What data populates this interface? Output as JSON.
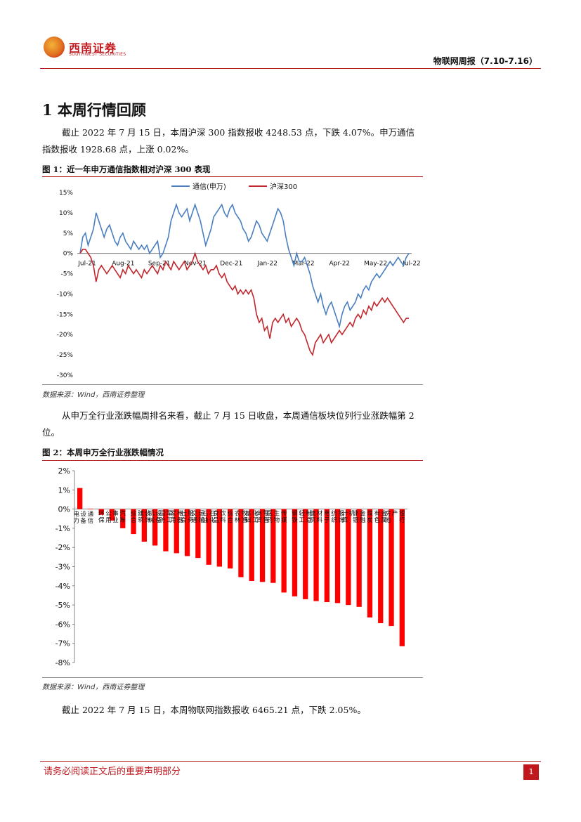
{
  "header": {
    "brand_cn": "西南证券",
    "brand_en": "SOUTHWEST SECURITIES",
    "report_title": "物联网周报（7.10-7.16）"
  },
  "section": {
    "title": "1 本周行情回顾"
  },
  "paragraphs": {
    "p1": "截止 2022 年 7 月 15 日，本周沪深 300 指数报收 4248.53 点，下跌 4.07%。申万通信指数报收 1928.68 点，上涨 0.02%。",
    "p2": "从申万全行业涨跌幅周排名来看，截止 7 月 15 日收盘，本周通信板块位列行业涨跌幅第 2 位。",
    "p3": "截止 2022 年 7 月 15 日，本周物联网指数报收 6465.21 点，下跌 2.05%。"
  },
  "figures": {
    "fig1_label": "图 1：近一年申万通信指数相对沪深 300 表现",
    "fig1_source": "数据来源：Wind，西南证券整理",
    "fig2_label": "图 2：本周申万全行业涨跌幅情况",
    "fig2_source": "数据来源：Wind，西南证券整理"
  },
  "colors": {
    "telecom": "#4a7fbf",
    "hs300": "#c0272d",
    "bar": "#ff0000",
    "accent": "#c0181d"
  },
  "chart_data": [
    {
      "type": "line",
      "title": "近一年申万通信指数相对沪深 300 表现",
      "x_labels": [
        "Jul-21",
        "Aug-21",
        "Sep-21",
        "Nov-21",
        "Dec-21",
        "Jan-22",
        "Mar-22",
        "Apr-22",
        "May-22",
        "Jul-22"
      ],
      "y_ticks": [
        "15%",
        "10%",
        "5%",
        "0%",
        "-5%",
        "-10%",
        "-15%",
        "-20%",
        "-25%",
        "-30%"
      ],
      "ylim": [
        -30,
        15
      ],
      "series": [
        {
          "name": "通信(申万)",
          "values": [
            0,
            4,
            5,
            2,
            4,
            6,
            10,
            8,
            6,
            4,
            6,
            7,
            5,
            3,
            2,
            4,
            5,
            3,
            2,
            1,
            3,
            2,
            1,
            2,
            1,
            2,
            0,
            1,
            2,
            3,
            -1,
            0,
            2,
            4,
            8,
            10,
            12,
            10,
            9,
            10,
            11,
            8,
            10,
            12,
            10,
            8,
            5,
            2,
            4,
            6,
            9,
            10,
            11,
            12,
            10,
            9,
            11,
            12,
            10,
            9,
            8,
            6,
            5,
            3,
            4,
            6,
            8,
            7,
            5,
            4,
            3,
            5,
            7,
            9,
            11,
            10,
            8,
            4,
            1,
            -1,
            -3,
            0,
            -2,
            -2,
            -1,
            -3,
            -5,
            -8,
            -10,
            -12,
            -10,
            -13,
            -15,
            -13,
            -12,
            -14,
            -16,
            -18,
            -15,
            -13,
            -12,
            -14,
            -13,
            -12,
            -10,
            -11,
            -9,
            -8,
            -9,
            -7,
            -6,
            -5,
            -6,
            -5,
            -4,
            -3,
            -2,
            -3,
            -2,
            -1,
            -2,
            -3,
            -1,
            0
          ]
        },
        {
          "name": "沪深300",
          "values": [
            0,
            1,
            1,
            0,
            -1,
            -3,
            -7,
            -4,
            -3,
            -4,
            -5,
            -4,
            -3,
            -4,
            -5,
            -6,
            -4,
            -5,
            -3,
            -4,
            -5,
            -4,
            -5,
            -6,
            -4,
            -5,
            -4,
            -3,
            -4,
            -5,
            -3,
            -4,
            -2,
            -3,
            -4,
            -2,
            -3,
            -4,
            -3,
            -2,
            -4,
            -3,
            -2,
            0,
            -2,
            -3,
            -4,
            -3,
            -5,
            -4,
            -4,
            -3,
            -5,
            -6,
            -5,
            -7,
            -8,
            -9,
            -8,
            -10,
            -9,
            -10,
            -9,
            -10,
            -9,
            -11,
            -15,
            -17,
            -16,
            -19,
            -18,
            -21,
            -17,
            -16,
            -17,
            -16,
            -15,
            -17,
            -16,
            -18,
            -17,
            -16,
            -17,
            -19,
            -20,
            -22,
            -24,
            -25,
            -22,
            -21,
            -20,
            -22,
            -21,
            -20,
            -22,
            -21,
            -20,
            -19,
            -20,
            -19,
            -18,
            -17,
            -18,
            -16,
            -15,
            -16,
            -14,
            -15,
            -13,
            -14,
            -12,
            -13,
            -12,
            -11,
            -12,
            -11,
            -12,
            -13,
            -14,
            -15,
            -16,
            -17,
            -16,
            -16
          ]
        }
      ]
    },
    {
      "type": "bar",
      "title": "本周申万全行业涨跌幅情况",
      "y_ticks": [
        "2%",
        "1%",
        "0%",
        "-1%",
        "-2%",
        "-3%",
        "-4%",
        "-5%",
        "-6%",
        "-7%",
        "-8%"
      ],
      "ylim": [
        -8,
        2
      ],
      "categories": [
        "电力设备",
        "通信",
        "环保",
        "公用事业",
        "汽车",
        "综合",
        "建筑装饰",
        "机械设备",
        "国防军工",
        "家用电器",
        "社会服务",
        "交通运输",
        "石油石化",
        "食品饮料",
        "综合",
        "农林牧渔",
        "基础化工",
        "商贸零售",
        "医药生物",
        "传媒",
        "钢铁",
        "轻工制造",
        "建筑材料",
        "电子",
        "纺织服饰",
        "计算机",
        "非银金融",
        "煤炭",
        "有色金属",
        "房地产",
        "银行"
      ],
      "values": [
        1.1,
        0.02,
        -0.3,
        -0.6,
        -1.0,
        -1.3,
        -1.7,
        -1.9,
        -2.2,
        -2.3,
        -2.45,
        -2.55,
        -2.9,
        -3.0,
        -3.1,
        -3.55,
        -3.75,
        -3.8,
        -3.85,
        -4.35,
        -4.55,
        -4.7,
        -4.8,
        -4.85,
        -4.9,
        -5.0,
        -5.1,
        -5.65,
        -5.95,
        -6.1,
        -7.15
      ]
    }
  ]
}
